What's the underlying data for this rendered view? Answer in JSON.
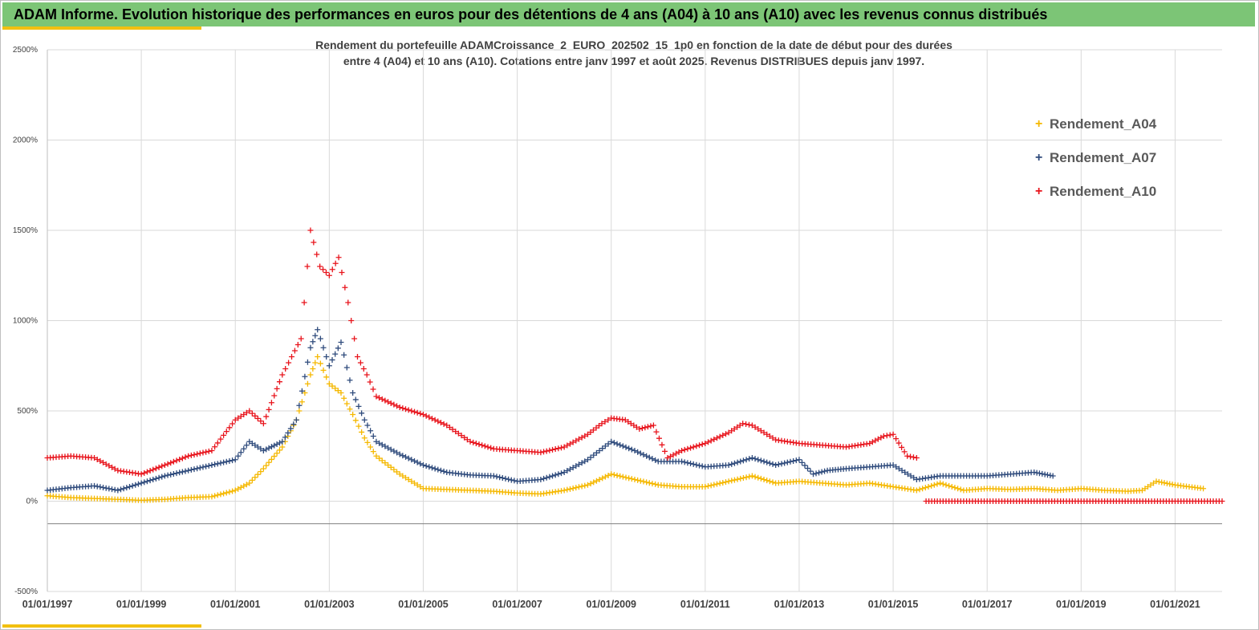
{
  "banner": {
    "text": "ADAM Informe. Evolution historique des performances en euros pour des détentions de 4 ans (A04) à 10 ans (A10) avec les revenus connus distribués"
  },
  "chart_data": {
    "type": "scatter",
    "title_line1": "Rendement du portefeuille ADAMCroissance_2_EURO_202502_15_1p0  en fonction de la date de début pour des durées",
    "title_line2": "entre 4 (A04) et 10 ans (A10). Cotations  entre janv 1997 et août 2025. Revenus DISTRIBUES depuis janv 1997.",
    "xlabel": "",
    "ylabel": "",
    "xlim": [
      1997.0,
      2022.0
    ],
    "ylim": [
      -500,
      2500
    ],
    "x_ticks": [
      1997,
      1999,
      2001,
      2003,
      2005,
      2007,
      2009,
      2011,
      2013,
      2015,
      2017,
      2019,
      2021
    ],
    "x_tick_labels": [
      "01/01/1997",
      "01/01/1999",
      "01/01/2001",
      "01/01/2003",
      "01/01/2005",
      "01/01/2007",
      "01/01/2009",
      "01/01/2011",
      "01/01/2013",
      "01/01/2015",
      "01/01/2017",
      "01/01/2019",
      "01/01/2021"
    ],
    "y_ticks": [
      -500,
      0,
      500,
      1000,
      1500,
      2000,
      2500
    ],
    "y_tick_labels": [
      "-500%",
      "0%",
      "500%",
      "1000%",
      "1500%",
      "2000%",
      "2500%"
    ],
    "grid": true,
    "legend_position": "top-right",
    "marker": "+",
    "series": [
      {
        "name": "Rendement_A04",
        "color": "#f5b800",
        "x": [
          1997.0,
          1997.5,
          1998.0,
          1998.5,
          1999.0,
          1999.5,
          2000.0,
          2000.5,
          2001.0,
          2001.3,
          2001.6,
          2002.0,
          2002.3,
          2002.6,
          2002.75,
          2003.0,
          2003.25,
          2003.5,
          2003.75,
          2004.0,
          2004.5,
          2005.0,
          2005.5,
          2006.0,
          2006.5,
          2007.0,
          2007.5,
          2008.0,
          2008.5,
          2009.0,
          2009.5,
          2010.0,
          2010.5,
          2011.0,
          2011.5,
          2012.0,
          2012.5,
          2013.0,
          2013.5,
          2014.0,
          2014.5,
          2015.0,
          2015.5,
          2016.0,
          2016.5,
          2017.0,
          2017.5,
          2018.0,
          2018.5,
          2019.0,
          2019.5,
          2020.0,
          2020.3,
          2020.6,
          2021.0,
          2021.3,
          2021.6
        ],
        "y": [
          30,
          20,
          15,
          10,
          5,
          10,
          20,
          25,
          60,
          100,
          180,
          300,
          450,
          700,
          800,
          650,
          600,
          480,
          350,
          250,
          150,
          70,
          65,
          60,
          55,
          45,
          40,
          60,
          90,
          150,
          120,
          90,
          80,
          80,
          110,
          140,
          100,
          110,
          100,
          90,
          100,
          80,
          60,
          100,
          60,
          70,
          65,
          70,
          60,
          70,
          60,
          55,
          60,
          110,
          90,
          80,
          70
        ]
      },
      {
        "name": "Rendement_A07",
        "color": "#2f4b7c",
        "x": [
          1997.0,
          1997.5,
          1998.0,
          1998.5,
          1999.0,
          1999.5,
          2000.0,
          2000.5,
          2001.0,
          2001.3,
          2001.6,
          2002.0,
          2002.3,
          2002.6,
          2002.75,
          2003.0,
          2003.25,
          2003.5,
          2003.75,
          2004.0,
          2004.5,
          2005.0,
          2005.5,
          2006.0,
          2006.5,
          2007.0,
          2007.5,
          2008.0,
          2008.5,
          2009.0,
          2009.5,
          2010.0,
          2010.5,
          2011.0,
          2011.5,
          2012.0,
          2012.5,
          2013.0,
          2013.3,
          2013.6,
          2014.0,
          2014.5,
          2015.0,
          2015.5,
          2016.0,
          2016.5,
          2017.0,
          2017.5,
          2018.0,
          2018.4
        ],
        "y": [
          60,
          75,
          85,
          60,
          100,
          140,
          170,
          200,
          230,
          330,
          280,
          330,
          450,
          850,
          950,
          750,
          880,
          600,
          450,
          330,
          260,
          200,
          160,
          145,
          140,
          110,
          120,
          160,
          230,
          330,
          280,
          220,
          220,
          190,
          200,
          240,
          200,
          230,
          150,
          170,
          180,
          190,
          200,
          120,
          140,
          140,
          140,
          150,
          160,
          140
        ]
      },
      {
        "name": "Rendement_A10",
        "color": "#e8141c",
        "x": [
          1997.0,
          1997.5,
          1998.0,
          1998.5,
          1999.0,
          1999.5,
          2000.0,
          2000.5,
          2001.0,
          2001.3,
          2001.6,
          2002.0,
          2002.2,
          2002.4,
          2002.6,
          2002.8,
          2003.0,
          2003.2,
          2003.4,
          2003.6,
          2003.8,
          2004.0,
          2004.5,
          2005.0,
          2005.5,
          2006.0,
          2006.5,
          2007.0,
          2007.5,
          2008.0,
          2008.5,
          2008.8,
          2009.0,
          2009.3,
          2009.6,
          2009.9,
          2010.2,
          2010.5,
          2011.0,
          2011.5,
          2011.8,
          2012.0,
          2012.5,
          2013.0,
          2013.5,
          2014.0,
          2014.5,
          2014.8,
          2015.0,
          2015.3,
          2015.5
        ],
        "y": [
          240,
          250,
          240,
          170,
          150,
          200,
          250,
          280,
          450,
          500,
          430,
          700,
          800,
          900,
          1500,
          1300,
          1250,
          1350,
          1100,
          800,
          700,
          580,
          520,
          480,
          420,
          330,
          290,
          280,
          270,
          300,
          370,
          430,
          460,
          450,
          400,
          420,
          240,
          280,
          320,
          380,
          430,
          420,
          340,
          320,
          310,
          300,
          320,
          360,
          370,
          250,
          240
        ]
      },
      {
        "name": "Rendement_A10",
        "color": "#e8141c",
        "x": [
          2015.7,
          2016.0,
          2016.5,
          2017.0,
          2017.5,
          2018.0,
          2018.5,
          2019.0,
          2019.5,
          2020.0,
          2020.5,
          2021.0,
          2021.5,
          2022.0
        ],
        "y": [
          0,
          0,
          0,
          0,
          0,
          0,
          0,
          0,
          0,
          0,
          0,
          0,
          0,
          0
        ]
      }
    ]
  }
}
